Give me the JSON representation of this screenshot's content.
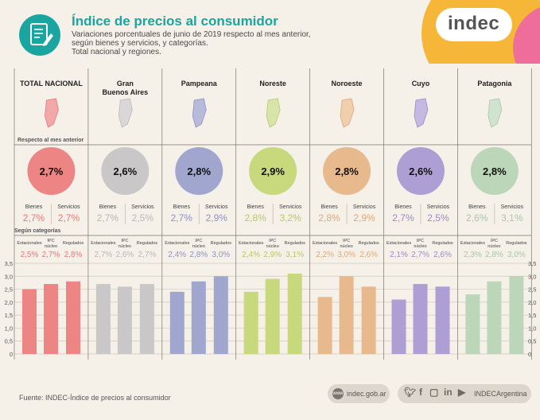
{
  "header": {
    "title": "Índice de precios al consumidor",
    "subtitle_lines": [
      "Variaciones porcentuales de junio de 2019 respecto al mes anterior,",
      "según bienes y servicios, y categorías.",
      "Total nacional y regiones."
    ],
    "logo": "indec",
    "icon": "document-pencil-icon"
  },
  "labels": {
    "respecto": "Respecto al mes anterior",
    "segun_categorias": "Según categorías",
    "bienes": "Bienes",
    "servicios": "Servicios",
    "estacionales": "Estacionales",
    "ipc_nucleo": [
      "IPC",
      "núcleo"
    ],
    "regulados": "Regulados"
  },
  "footer": {
    "source": "Fuente: INDEC-Índice de precios al consumidor",
    "web": "indec.gob.ar",
    "social": "INDECArgentina",
    "social_icons": [
      "twitter-icon",
      "facebook-icon",
      "instagram-icon",
      "linkedin-icon",
      "youtube-icon"
    ]
  },
  "chart_data": {
    "type": "bar",
    "regions": [
      {
        "name": [
          "TOTAL NACIONAL"
        ],
        "color": "#e8787a",
        "circle": "#ee8585",
        "light": "#f2a7a8",
        "general": "2,7%",
        "bienes": "2,7%",
        "servicios": "2,7%",
        "estacionales": "2,5%",
        "nucleo": "2,7%",
        "regulados": "2,8%",
        "values": [
          2.5,
          2.7,
          2.8
        ]
      },
      {
        "name": [
          "Gran",
          "Buenos Aires"
        ],
        "color": "#b9b7b8",
        "circle": "#c9c7c8",
        "light": "#d9d7d8",
        "general": "2,6%",
        "bienes": "2,7%",
        "servicios": "2,5%",
        "estacionales": "2,7%",
        "nucleo": "2,6%",
        "regulados": "2,7%",
        "values": [
          2.7,
          2.6,
          2.7
        ]
      },
      {
        "name": [
          "Pampeana"
        ],
        "color": "#8d92c0",
        "circle": "#a1a6cf",
        "light": "#b7badb",
        "general": "2,8%",
        "bienes": "2,7%",
        "servicios": "2,9%",
        "estacionales": "2,4%",
        "nucleo": "2,8%",
        "regulados": "3,0%",
        "values": [
          2.4,
          2.8,
          3.0
        ]
      },
      {
        "name": [
          "Noreste"
        ],
        "color": "#b7c96a",
        "circle": "#c8d87c",
        "light": "#d9e4a8",
        "general": "2,9%",
        "bienes": "2,8%",
        "servicios": "3,2%",
        "estacionales": "2,4%",
        "nucleo": "2,9%",
        "regulados": "3,1%",
        "values": [
          2.4,
          2.9,
          3.1
        ]
      },
      {
        "name": [
          "Noroeste"
        ],
        "color": "#e0a776",
        "circle": "#e8b98c",
        "light": "#efcfae",
        "general": "2,8%",
        "bienes": "2,8%",
        "servicios": "2,9%",
        "estacionales": "2,2%",
        "nucleo": "3,0%",
        "regulados": "2,6%",
        "values": [
          2.2,
          3.0,
          2.6
        ]
      },
      {
        "name": [
          "Cuyo"
        ],
        "color": "#9c8bc8",
        "circle": "#ad9fd3",
        "light": "#c4b9e0",
        "general": "2,6%",
        "bienes": "2,7%",
        "servicios": "2,5%",
        "estacionales": "2,1%",
        "nucleo": "2,7%",
        "regulados": "2,6%",
        "values": [
          2.1,
          2.7,
          2.6
        ]
      },
      {
        "name": [
          "Patagonia"
        ],
        "color": "#a9c8a7",
        "circle": "#bbd6b9",
        "light": "#d0e3cf",
        "general": "2,8%",
        "bienes": "2,6%",
        "servicios": "3,1%",
        "estacionales": "2,3%",
        "nucleo": "2,8%",
        "regulados": "3,0%",
        "values": [
          2.3,
          2.8,
          3.0
        ]
      }
    ],
    "y_ticks": [
      "0",
      "0,5",
      "1,0",
      "1,5",
      "2,0",
      "2,5",
      "3,0",
      "3,5"
    ],
    "ylim": [
      0,
      3.5
    ]
  }
}
